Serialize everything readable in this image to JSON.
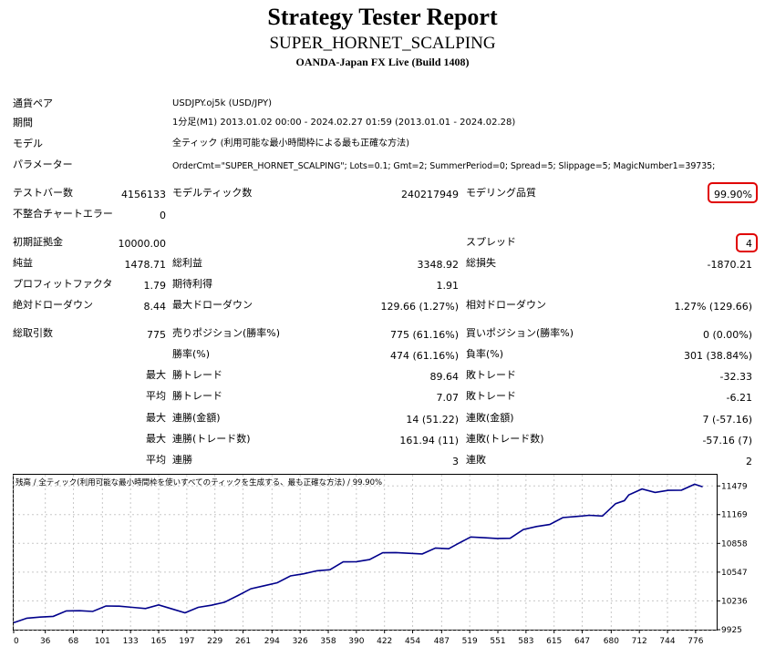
{
  "header": {
    "title": "Strategy Tester Report",
    "ea_name": "SUPER_HORNET_SCALPING",
    "server": "OANDA-Japan FX Live (Build 1408)"
  },
  "info": {
    "pair_label": "通貨ペア",
    "pair_value": "USDJPY.oj5k (USD/JPY)",
    "period_label": "期間",
    "period_value": "1分足(M1) 2013.01.02 00:00 - 2024.02.27 01:59 (2013.01.01 - 2024.02.28)",
    "model_label": "モデル",
    "model_value": "全ティック (利用可能な最小時間枠による最も正確な方法)",
    "params_label": "パラメーター",
    "params_value": "OrderCmt=\"SUPER_HORNET_SCALPING\"; Lots=0.1; Gmt=2; SummerPeriod=0; Spread=5; Slippage=5; MagicNumber1=39735;"
  },
  "stats": {
    "bars_label": "テストバー数",
    "bars_value": "4156133",
    "ticks_label": "モデルティック数",
    "ticks_value": "240217949",
    "quality_label": "モデリング品質",
    "quality_value": "99.90%",
    "mismatch_label": "不整合チャートエラー",
    "mismatch_value": "0",
    "deposit_label": "初期証拠金",
    "deposit_value": "10000.00",
    "spread_label": "スプレッド",
    "spread_value": "4",
    "net_label": "純益",
    "net_value": "1478.71",
    "gross_profit_label": "総利益",
    "gross_profit_value": "3348.92",
    "gross_loss_label": "総損失",
    "gross_loss_value": "-1870.21",
    "pf_label": "プロフィットファクタ",
    "pf_value": "1.79",
    "payoff_label": "期待利得",
    "payoff_value": "1.91",
    "abs_dd_label": "絶対ドローダウン",
    "abs_dd_value": "8.44",
    "max_dd_label": "最大ドローダウン",
    "max_dd_value": "129.66 (1.27%)",
    "rel_dd_label": "相対ドローダウン",
    "rel_dd_value": "1.27% (129.66)",
    "total_label": "総取引数",
    "total_value": "775",
    "short_label": "売りポジション(勝率%)",
    "short_value": "775 (61.16%)",
    "long_label": "買いポジション(勝率%)",
    "long_value": "0 (0.00%)",
    "win_rate_label": "勝率(%)",
    "win_rate_value": "474 (61.16%)",
    "loss_rate_label": "負率(%)",
    "loss_rate_value": "301 (38.84%)",
    "max_prefix": "最大",
    "avg_prefix": "平均",
    "largest_win_label": "勝トレード",
    "largest_win_value": "89.64",
    "largest_loss_label": "敗トレード",
    "largest_loss_value": "-32.33",
    "avg_win_label": "勝トレード",
    "avg_win_value": "7.07",
    "avg_loss_label": "敗トレード",
    "avg_loss_value": "-6.21",
    "max_cons_wins_label": "連勝(金額)",
    "max_cons_wins_value": "14 (51.22)",
    "max_cons_losses_label": "連敗(金額)",
    "max_cons_losses_value": "7 (-57.16)",
    "max_cons_profit_label": "連勝(トレード数)",
    "max_cons_profit_value": "161.94 (11)",
    "max_cons_loss_label": "連敗(トレード数)",
    "max_cons_loss_value": "-57.16 (7)",
    "avg_cons_wins_label": "連勝",
    "avg_cons_wins_value": "3",
    "avg_cons_losses_label": "連敗",
    "avg_cons_losses_value": "2"
  },
  "colors": {
    "line": "#00008b",
    "highlight": "#e00000",
    "grid": "#c8c8c8"
  },
  "chart_data": {
    "type": "line",
    "caption": "残高 / 全ティック(利用可能な最小時間枠を使いすべてのティックを生成する、最も正確な方法) / 99.90%",
    "x_ticks": [
      0,
      36,
      68,
      101,
      133,
      165,
      197,
      229,
      261,
      294,
      326,
      358,
      390,
      422,
      454,
      487,
      519,
      551,
      583,
      615,
      647,
      680,
      712,
      744,
      776
    ],
    "y_ticks": [
      9925,
      10236,
      10547,
      10858,
      11169,
      11479
    ],
    "xlim": [
      0,
      800
    ],
    "ylim": [
      9925,
      11600
    ],
    "series": [
      {
        "x": [
          0,
          15,
          30,
          45,
          60,
          75,
          90,
          105,
          120,
          135,
          150,
          165,
          180,
          195,
          210,
          225,
          240,
          255,
          270,
          285,
          300,
          315,
          330,
          345,
          360,
          375,
          390,
          405,
          420,
          435,
          450,
          465,
          480,
          495,
          505,
          520,
          535,
          550,
          565,
          580,
          595,
          610,
          625,
          640,
          655,
          670,
          685,
          695,
          700,
          715,
          730,
          745,
          760,
          775,
          784
        ],
        "y": [
          10000,
          10040,
          10070,
          10095,
          10110,
          10130,
          10140,
          10155,
          10170,
          10175,
          10180,
          10175,
          10150,
          10125,
          10140,
          10180,
          10230,
          10320,
          10350,
          10400,
          10450,
          10480,
          10520,
          10570,
          10600,
          10640,
          10660,
          10700,
          10730,
          10750,
          10760,
          10770,
          10790,
          10800,
          10870,
          10900,
          10910,
          10920,
          10940,
          10990,
          11040,
          11080,
          11110,
          11140,
          11170,
          11180,
          11270,
          11320,
          11400,
          11420,
          11400,
          11440,
          11460,
          11480,
          11470
        ]
      }
    ]
  }
}
